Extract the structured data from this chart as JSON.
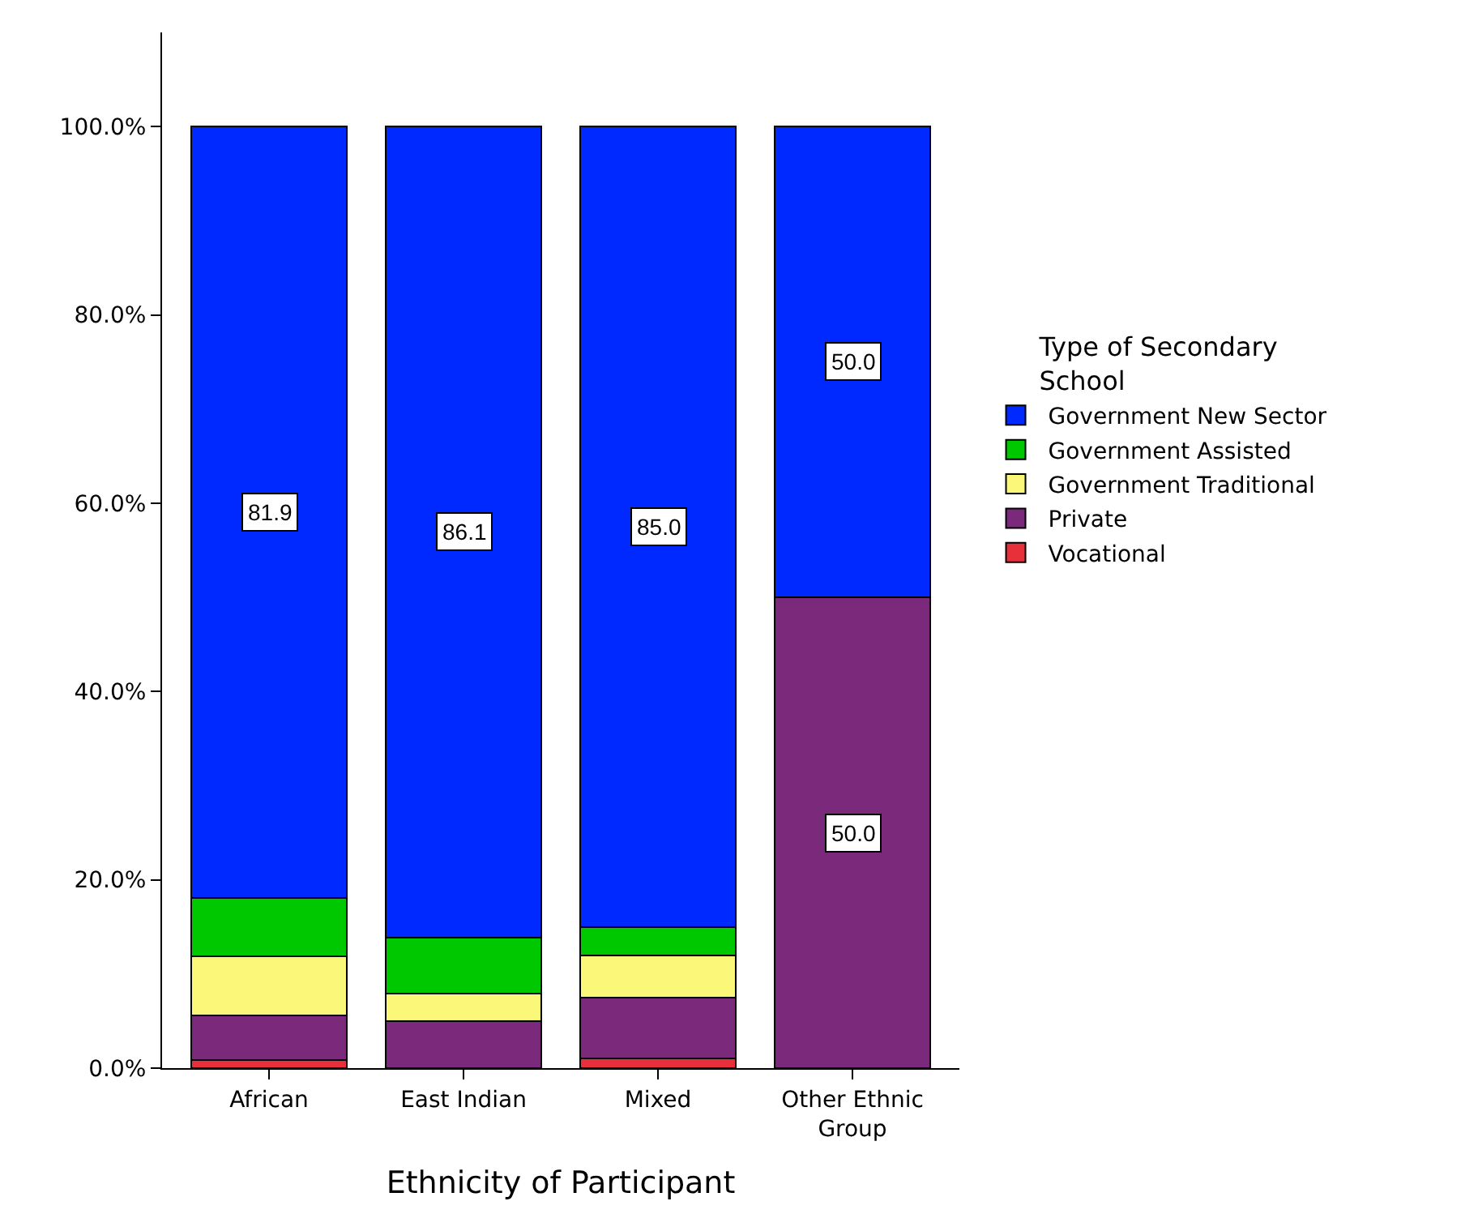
{
  "chart_data": {
    "type": "bar",
    "stacked": true,
    "xlabel": "Ethnicity of Participant",
    "legend_title": "Type of Secondary School",
    "legend": "right",
    "grid": false,
    "categories": [
      "African",
      "East Indian",
      "Mixed",
      "Other Ethnic Group"
    ],
    "ylim": [
      0,
      110
    ],
    "yticks": [
      {
        "value": 0,
        "label": "0.0%"
      },
      {
        "value": 20,
        "label": "20.0%"
      },
      {
        "value": 40,
        "label": "40.0%"
      },
      {
        "value": 60,
        "label": "60.0%"
      },
      {
        "value": 80,
        "label": "80.0%"
      },
      {
        "value": 100,
        "label": "100.0%"
      }
    ],
    "series": [
      {
        "name": "Vocational",
        "color": "#e8303a",
        "values": [
          0.9,
          0,
          1.0,
          0
        ],
        "value_labels": [
          null,
          null,
          null,
          null
        ]
      },
      {
        "name": "Private",
        "color": "#7b2a7b",
        "values": [
          4.7,
          5.0,
          6.5,
          50.0
        ],
        "value_labels": [
          null,
          null,
          null,
          "50.0"
        ]
      },
      {
        "name": "Government Traditional",
        "color": "#fbf778",
        "values": [
          6.3,
          2.9,
          4.5,
          0
        ],
        "value_labels": [
          null,
          null,
          null,
          null
        ]
      },
      {
        "name": "Government Assisted",
        "color": "#00c800",
        "values": [
          6.2,
          6.0,
          3.0,
          0
        ],
        "value_labels": [
          null,
          null,
          null,
          null
        ]
      },
      {
        "name": "Government New Sector",
        "color": "#0029ff",
        "values": [
          81.9,
          86.1,
          85.0,
          50.0
        ],
        "value_labels": [
          "81.9",
          "86.1",
          "85.0",
          "50.0"
        ]
      }
    ]
  }
}
